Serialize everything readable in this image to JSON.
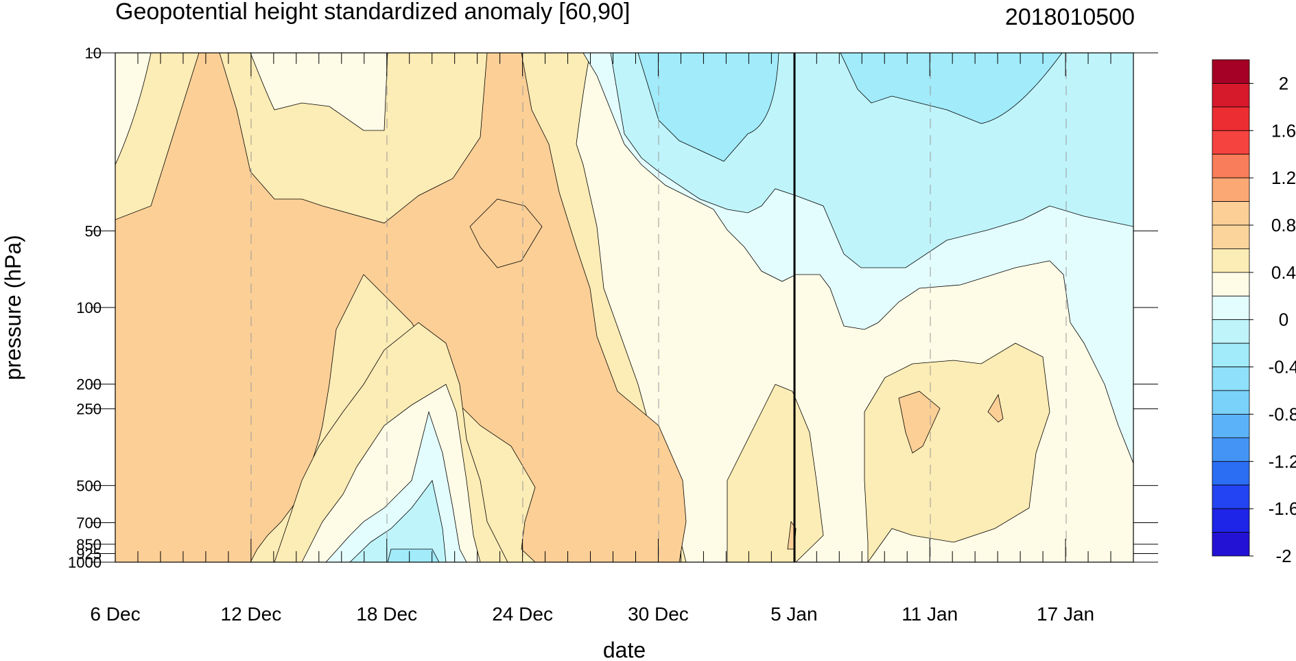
{
  "chart_data": {
    "type": "heatmap",
    "subtype": "filled-contour time-pressure cross-section",
    "title": "Geopotential height standardized anomaly [60,90]",
    "date_label": "2018010500",
    "xlabel": "date",
    "ylabel": "pressure (hPa)",
    "x_tick_labels": [
      "6 Dec",
      "12 Dec",
      "18 Dec",
      "24 Dec",
      "30 Dec",
      "5 Jan",
      "11 Jan",
      "17 Jan"
    ],
    "x_range": [
      "2017-12-06",
      "2018-01-20"
    ],
    "y_tick_labels": [
      "10",
      "50",
      "100",
      "200",
      "250",
      "500",
      "700",
      "850",
      "925",
      "1000"
    ],
    "y_tick_values": [
      10,
      50,
      100,
      200,
      250,
      500,
      700,
      850,
      925,
      1000
    ],
    "y_range": [
      1000,
      10
    ],
    "y_scale": "log-pressure",
    "vertical_marker": "2018-01-05",
    "colorbar": {
      "labels": [
        "2",
        "1.6",
        "1.2",
        "0.8",
        "0.4",
        "0",
        "-0.4",
        "-0.8",
        "-1.2",
        "-1.6",
        "-2"
      ],
      "colors": [
        "#a50026",
        "#d7192c",
        "#ec2d32",
        "#f5433f",
        "#f97d5a",
        "#fba875",
        "#fbcf96",
        "#fbd49b",
        "#fcecb5",
        "#fefbe6",
        "#e3fcfd",
        "#bff4fb",
        "#a1ebfa",
        "#8fe0fa",
        "#7ad1fa",
        "#5cb2f8",
        "#4494f5",
        "#2b6df3",
        "#2344f2",
        "#1e25e8",
        "#2412d4"
      ]
    },
    "contour_regions": [
      {
        "level": "0 to 0.4",
        "color": "#fefbe6"
      },
      {
        "level": "0.4 to 0.6",
        "color": "#fcecb5"
      },
      {
        "level": "0.6 to 0.8",
        "color": "#fbcf96"
      },
      {
        "level": "0 to -0.2",
        "color": "#e3fcfd"
      },
      {
        "level": "-0.2 to -0.4",
        "color": "#bff4fb"
      },
      {
        "level": "-0.4 to -0.6",
        "color": "#a1ebfa"
      }
    ]
  }
}
